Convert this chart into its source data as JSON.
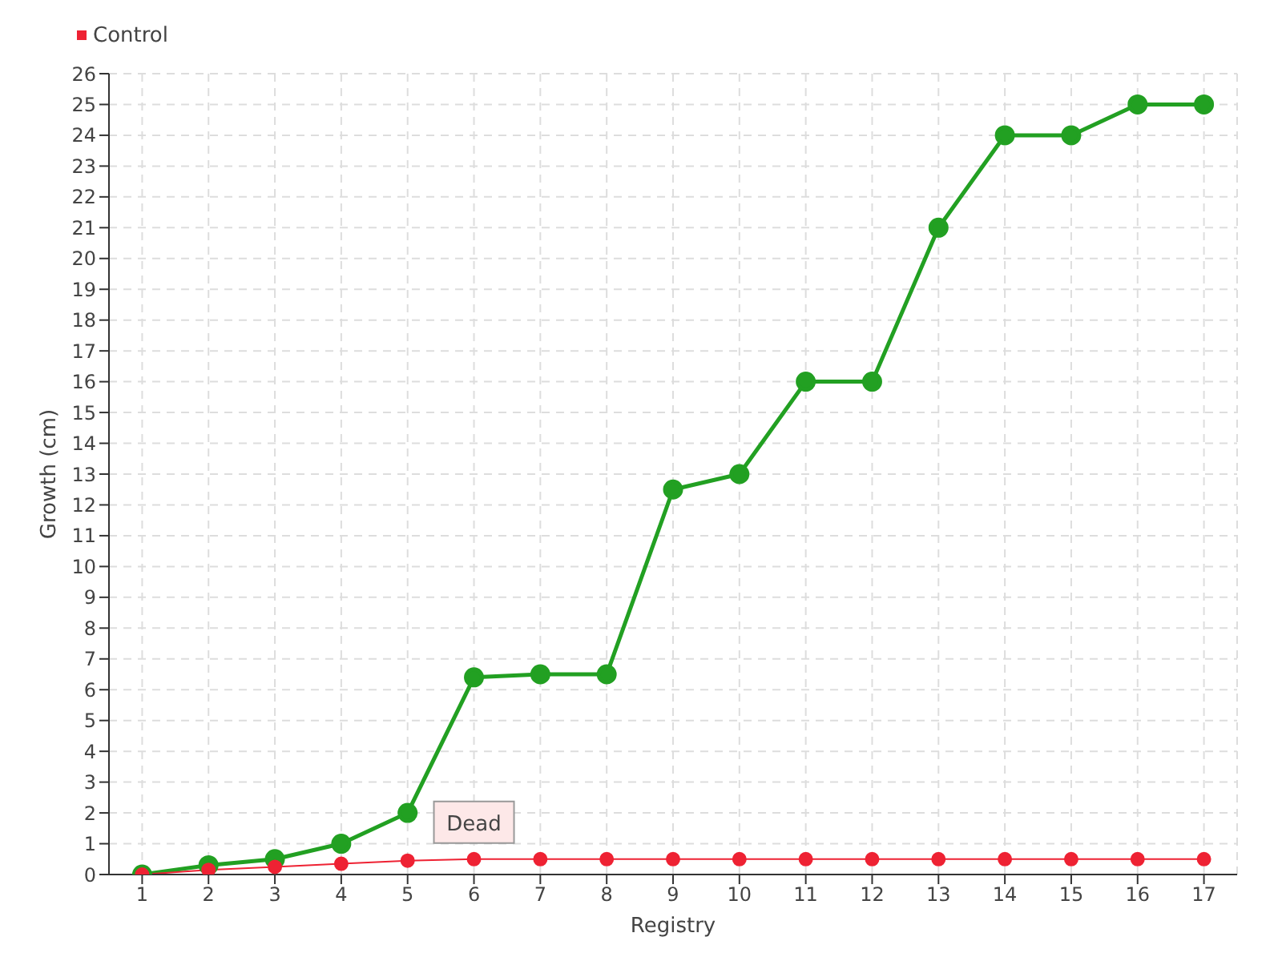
{
  "chart_data": {
    "type": "line",
    "xlabel": "Registry",
    "ylabel": "Growth (cm)",
    "x": [
      1,
      2,
      3,
      4,
      5,
      6,
      7,
      8,
      9,
      10,
      11,
      12,
      13,
      14,
      15,
      16,
      17
    ],
    "series": [
      {
        "color": "#22a022",
        "values": [
          0,
          0.3,
          0.5,
          1,
          2,
          6.4,
          6.5,
          6.5,
          12.5,
          13,
          16,
          16,
          21,
          24,
          24,
          25,
          25
        ]
      },
      {
        "name": "Control",
        "color": "#ee2233",
        "values": [
          0,
          0.15,
          0.25,
          0.35,
          0.45,
          0.5,
          0.5,
          0.5,
          0.5,
          0.5,
          0.5,
          0.5,
          0.5,
          0.5,
          0.5,
          0.5,
          0.5
        ]
      }
    ],
    "xlim": [
      0.5,
      17.5
    ],
    "xticks": [
      1,
      2,
      3,
      4,
      5,
      6,
      7,
      8,
      9,
      10,
      11,
      12,
      13,
      14,
      15,
      16,
      17
    ],
    "ylim": [
      0,
      26
    ],
    "yticks": [
      0,
      1,
      2,
      3,
      4,
      5,
      6,
      7,
      8,
      9,
      10,
      11,
      12,
      13,
      14,
      15,
      16,
      17,
      18,
      19,
      20,
      21,
      22,
      23,
      24,
      25,
      26
    ],
    "grid": true,
    "legend": "top left",
    "marker": "circle",
    "line_style": "solid",
    "annotations": [
      {
        "text": "Dead",
        "x": 6,
        "y": 0.5
      }
    ]
  }
}
